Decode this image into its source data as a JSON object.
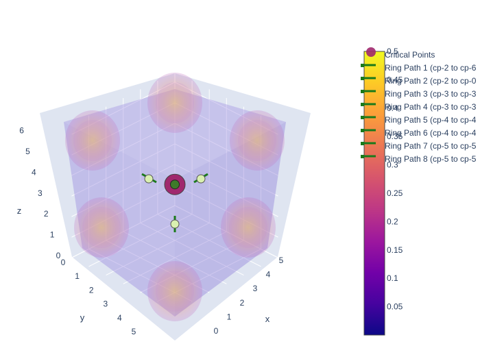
{
  "chart_data": {
    "type": "scatter3d",
    "axes": {
      "x": {
        "title": "x",
        "ticks": [
          "0",
          "1",
          "2",
          "3",
          "4",
          "5"
        ],
        "range": [
          0,
          6
        ]
      },
      "y": {
        "title": "y",
        "ticks": [
          "0",
          "1",
          "2",
          "3",
          "4",
          "5"
        ],
        "range": [
          0,
          6
        ]
      },
      "z": {
        "title": "z",
        "ticks": [
          "0",
          "1",
          "2",
          "3",
          "4",
          "5",
          "6"
        ],
        "range": [
          0,
          6.5
        ]
      }
    },
    "grid": true,
    "colorbar": {
      "colorscale": "plasma",
      "ticks": [
        "0.05",
        "0.1",
        "0.15",
        "0.2",
        "0.25",
        "0.3",
        "0.35",
        "0.4",
        "0.45",
        "0.5"
      ],
      "tick_values": [
        0.05,
        0.1,
        0.15,
        0.2,
        0.25,
        0.3,
        0.35,
        0.4,
        0.45,
        0.5
      ],
      "range": [
        0.0,
        0.5
      ]
    },
    "legend": {
      "placement": "top-right",
      "entries": [
        {
          "name": "Critical Points",
          "symbol": "marker",
          "color": "#a0286e"
        },
        {
          "name": "Ring Path 1 (cp-2 to cp-6",
          "symbol": "line",
          "color": "#1a7a1a"
        },
        {
          "name": "Ring Path 2 (cp-2 to cp-0",
          "symbol": "line",
          "color": "#1a7a1a"
        },
        {
          "name": "Ring Path 3 (cp-3 to cp-3",
          "symbol": "line",
          "color": "#1a7a1a"
        },
        {
          "name": "Ring Path 4 (cp-3 to cp-3",
          "symbol": "line",
          "color": "#1a7a1a"
        },
        {
          "name": "Ring Path 5 (cp-4 to cp-4",
          "symbol": "line",
          "color": "#1a7a1a"
        },
        {
          "name": "Ring Path 6 (cp-4 to cp-4",
          "symbol": "line",
          "color": "#1a7a1a"
        },
        {
          "name": "Ring Path 7 (cp-5 to cp-5",
          "symbol": "line",
          "color": "#1a7a1a"
        },
        {
          "name": "Ring Path 8 (cp-5 to cp-5",
          "symbol": "line",
          "color": "#1a7a1a"
        }
      ]
    },
    "critical_points": [
      {
        "x": 3,
        "y": 3,
        "z": 3,
        "value": 0.25,
        "kind": "large"
      },
      {
        "x": 3,
        "y": 3,
        "z": 3,
        "value": 0.45,
        "kind": "center"
      },
      {
        "x": 3,
        "y": 3,
        "z": 4.5,
        "value": 0.45,
        "kind": "small"
      },
      {
        "x": 4.5,
        "y": 3,
        "z": 3,
        "value": 0.45,
        "kind": "small"
      },
      {
        "x": 3,
        "y": 4.5,
        "z": 3,
        "value": 0.45,
        "kind": "small"
      }
    ],
    "colors": {
      "box_fill": "#9a8fe0",
      "grid_bg": "#e5ecf6",
      "path_line": "#1a7a1a",
      "text": "#2a3f5f"
    }
  }
}
